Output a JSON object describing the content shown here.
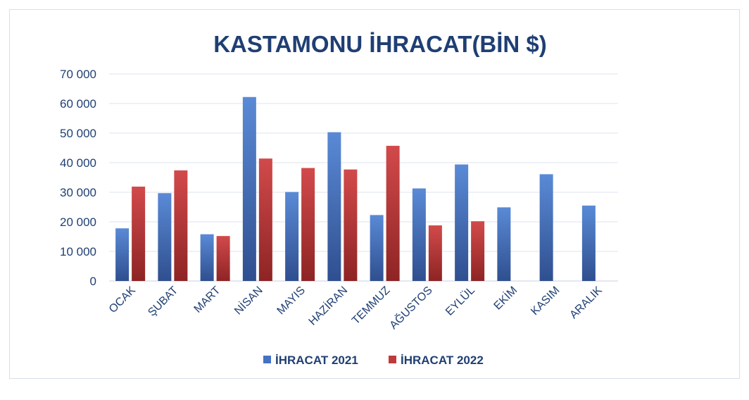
{
  "chart_data": {
    "type": "bar",
    "title": "KASTAMONU İHRACAT(BİN $)",
    "xlabel": "",
    "ylabel": "",
    "ylim": [
      0,
      70000
    ],
    "y_ticks": [
      "0",
      "10 000",
      "20 000",
      "30 000",
      "40 000",
      "50 000",
      "60 000",
      "70 000"
    ],
    "y_tick_values": [
      0,
      10000,
      20000,
      30000,
      40000,
      50000,
      60000,
      70000
    ],
    "grid": true,
    "legend_position": "bottom",
    "categories": [
      "OCAK",
      "ŞUBAT",
      "MART",
      "NİSAN",
      "MAYIS",
      "HAZİRAN",
      "TEMMUZ",
      "AĞUSTOS",
      "EYLÜL",
      "EKİM",
      "KASIM",
      "ARALIK"
    ],
    "series": [
      {
        "name": "İHRACAT 2021",
        "color": "#4472c4",
        "values": [
          17800,
          29700,
          15800,
          62200,
          30100,
          50300,
          22300,
          31300,
          39400,
          24900,
          36100,
          25500
        ]
      },
      {
        "name": "İHRACAT 2022",
        "color": "#c0393b",
        "values": [
          31900,
          37400,
          15200,
          41400,
          38200,
          37700,
          45700,
          18800,
          20200,
          null,
          null,
          null
        ]
      }
    ]
  },
  "colors": {
    "title": "#1f3f73",
    "axis_text": "#1f3f73",
    "grid": "#dde3ee"
  }
}
